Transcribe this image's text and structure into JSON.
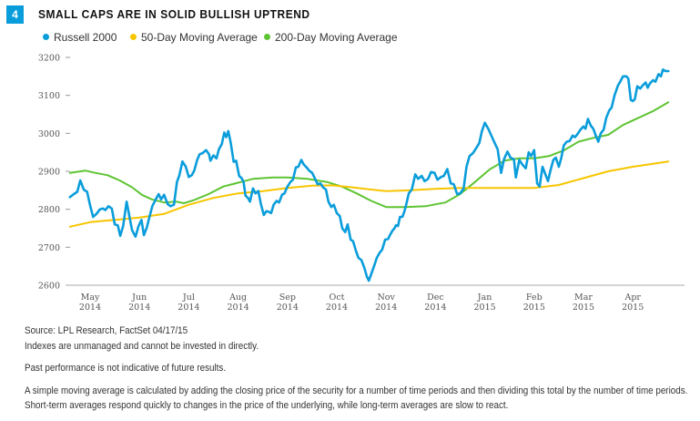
{
  "badge": "4",
  "title": "SMALL CAPS ARE IN SOLID BULLISH UPTREND",
  "legend": [
    {
      "label": "Russell 2000",
      "color": "#0a9ddb"
    },
    {
      "label": "50-Day Moving Average",
      "color": "#f7c500"
    },
    {
      "label": "200-Day Moving Average",
      "color": "#5ec433"
    }
  ],
  "footnotes": {
    "source": "Source: LPL Research, FactSet  04/17/15",
    "indexes": "Indexes are unmanaged and cannot be invested in directly.",
    "past": "Past performance is not indicative of future results.",
    "sma": "A simple moving average is calculated by adding the closing price of the security for a number of time periods and then dividing this total by the number of time periods. Short-term averages respond quickly to changes in the price of the underlying, while long-term averages are slow to react."
  },
  "chart_data": {
    "type": "line",
    "title": "SMALL CAPS ARE IN SOLID BULLISH UPTREND",
    "xlabel": "",
    "ylabel": "",
    "x_unit": "months since May 2014 (0 = May 2014, 11 = Apr 2015)",
    "xlim": [
      -0.5,
      12.1
    ],
    "ylim": [
      2600,
      3200
    ],
    "yticks": [
      2600,
      2700,
      2800,
      2900,
      3000,
      3100,
      3200
    ],
    "xticks": [
      {
        "x": 0,
        "label": [
          "May",
          "2014"
        ]
      },
      {
        "x": 1,
        "label": [
          "Jun",
          "2014"
        ]
      },
      {
        "x": 2,
        "label": [
          "Jul",
          "2014"
        ]
      },
      {
        "x": 3,
        "label": [
          "Aug",
          "2014"
        ]
      },
      {
        "x": 4,
        "label": [
          "Sep",
          "2014"
        ]
      },
      {
        "x": 5,
        "label": [
          "Oct",
          "2014"
        ]
      },
      {
        "x": 6,
        "label": [
          "Nov",
          "2014"
        ]
      },
      {
        "x": 7,
        "label": [
          "Dec",
          "2014"
        ]
      },
      {
        "x": 8,
        "label": [
          "Jan",
          "2015"
        ]
      },
      {
        "x": 9,
        "label": [
          "Feb",
          "2015"
        ]
      },
      {
        "x": 10,
        "label": [
          "Mar",
          "2015"
        ]
      },
      {
        "x": 11,
        "label": [
          "Apr",
          "2015"
        ]
      }
    ],
    "grid": false,
    "legend_position": "top-left",
    "series": [
      {
        "name": "Russell 2000",
        "color": "#0a9ddb",
        "points": [
          [
            -0.41,
            2832
          ],
          [
            -0.33,
            2840
          ],
          [
            -0.26,
            2846
          ],
          [
            -0.2,
            2876
          ],
          [
            -0.13,
            2852
          ],
          [
            -0.06,
            2846
          ],
          [
            0.0,
            2810
          ],
          [
            0.06,
            2780
          ],
          [
            0.13,
            2788
          ],
          [
            0.2,
            2800
          ],
          [
            0.26,
            2802
          ],
          [
            0.31,
            2798
          ],
          [
            0.37,
            2808
          ],
          [
            0.44,
            2802
          ],
          [
            0.5,
            2760
          ],
          [
            0.56,
            2758
          ],
          [
            0.61,
            2730
          ],
          [
            0.67,
            2756
          ],
          [
            0.74,
            2820
          ],
          [
            0.8,
            2778
          ],
          [
            0.85,
            2745
          ],
          [
            0.92,
            2728
          ],
          [
            0.98,
            2755
          ],
          [
            1.04,
            2772
          ],
          [
            1.09,
            2732
          ],
          [
            1.15,
            2752
          ],
          [
            1.2,
            2778
          ],
          [
            1.26,
            2808
          ],
          [
            1.33,
            2826
          ],
          [
            1.39,
            2840
          ],
          [
            1.44,
            2826
          ],
          [
            1.5,
            2838
          ],
          [
            1.57,
            2814
          ],
          [
            1.63,
            2808
          ],
          [
            1.7,
            2812
          ],
          [
            1.76,
            2872
          ],
          [
            1.81,
            2890
          ],
          [
            1.87,
            2926
          ],
          [
            1.94,
            2912
          ],
          [
            2.0,
            2885
          ],
          [
            2.06,
            2890
          ],
          [
            2.11,
            2902
          ],
          [
            2.17,
            2930
          ],
          [
            2.22,
            2945
          ],
          [
            2.28,
            2948
          ],
          [
            2.35,
            2956
          ],
          [
            2.41,
            2945
          ],
          [
            2.44,
            2928
          ],
          [
            2.5,
            2942
          ],
          [
            2.56,
            2934
          ],
          [
            2.61,
            2958
          ],
          [
            2.67,
            2972
          ],
          [
            2.72,
            3002
          ],
          [
            2.76,
            2990
          ],
          [
            2.8,
            3006
          ],
          [
            2.85,
            2975
          ],
          [
            2.91,
            2925
          ],
          [
            2.96,
            2928
          ],
          [
            3.02,
            2888
          ],
          [
            3.07,
            2882
          ],
          [
            3.11,
            2872
          ],
          [
            3.15,
            2836
          ],
          [
            3.2,
            2830
          ],
          [
            3.24,
            2820
          ],
          [
            3.3,
            2855
          ],
          [
            3.35,
            2842
          ],
          [
            3.41,
            2848
          ],
          [
            3.46,
            2815
          ],
          [
            3.52,
            2785
          ],
          [
            3.57,
            2795
          ],
          [
            3.61,
            2794
          ],
          [
            3.67,
            2790
          ],
          [
            3.72,
            2812
          ],
          [
            3.78,
            2822
          ],
          [
            3.83,
            2818
          ],
          [
            3.89,
            2838
          ],
          [
            3.94,
            2842
          ],
          [
            4.0,
            2860
          ],
          [
            4.06,
            2872
          ],
          [
            4.11,
            2878
          ],
          [
            4.17,
            2910
          ],
          [
            4.22,
            2912
          ],
          [
            4.28,
            2930
          ],
          [
            4.33,
            2918
          ],
          [
            4.39,
            2910
          ],
          [
            4.44,
            2902
          ],
          [
            4.5,
            2896
          ],
          [
            4.56,
            2880
          ],
          [
            4.61,
            2866
          ],
          [
            4.67,
            2868
          ],
          [
            4.72,
            2858
          ],
          [
            4.78,
            2852
          ],
          [
            4.83,
            2820
          ],
          [
            4.89,
            2806
          ],
          [
            4.94,
            2812
          ],
          [
            5.0,
            2790
          ],
          [
            5.06,
            2782
          ],
          [
            5.11,
            2750
          ],
          [
            5.17,
            2740
          ],
          [
            5.22,
            2760
          ],
          [
            5.28,
            2720
          ],
          [
            5.33,
            2716
          ],
          [
            5.39,
            2690
          ],
          [
            5.44,
            2672
          ],
          [
            5.5,
            2666
          ],
          [
            5.56,
            2645
          ],
          [
            5.61,
            2622
          ],
          [
            5.65,
            2612
          ],
          [
            5.7,
            2630
          ],
          [
            5.76,
            2652
          ],
          [
            5.81,
            2672
          ],
          [
            5.87,
            2686
          ],
          [
            5.92,
            2694
          ],
          [
            5.98,
            2720
          ],
          [
            6.04,
            2722
          ],
          [
            6.07,
            2730
          ],
          [
            6.13,
            2744
          ],
          [
            6.17,
            2750
          ],
          [
            6.2,
            2758
          ],
          [
            6.24,
            2756
          ],
          [
            6.28,
            2780
          ],
          [
            6.33,
            2780
          ],
          [
            6.37,
            2795
          ],
          [
            6.41,
            2814
          ],
          [
            6.46,
            2842
          ],
          [
            6.52,
            2852
          ],
          [
            6.59,
            2892
          ],
          [
            6.65,
            2880
          ],
          [
            6.72,
            2888
          ],
          [
            6.78,
            2874
          ],
          [
            6.85,
            2880
          ],
          [
            6.91,
            2898
          ],
          [
            6.98,
            2896
          ],
          [
            7.04,
            2878
          ],
          [
            7.11,
            2885
          ],
          [
            7.17,
            2888
          ],
          [
            7.24,
            2906
          ],
          [
            7.31,
            2868
          ],
          [
            7.37,
            2866
          ],
          [
            7.44,
            2840
          ],
          [
            7.5,
            2842
          ],
          [
            7.57,
            2855
          ],
          [
            7.63,
            2912
          ],
          [
            7.69,
            2940
          ],
          [
            7.76,
            2948
          ],
          [
            7.83,
            2962
          ],
          [
            7.89,
            2975
          ],
          [
            7.94,
            3005
          ],
          [
            8.0,
            3028
          ],
          [
            8.07,
            3012
          ],
          [
            8.13,
            2995
          ],
          [
            8.2,
            2975
          ],
          [
            8.26,
            2958
          ],
          [
            8.33,
            2896
          ],
          [
            8.39,
            2932
          ],
          [
            8.46,
            2952
          ],
          [
            8.52,
            2936
          ],
          [
            8.59,
            2932
          ],
          [
            8.63,
            2884
          ],
          [
            8.7,
            2930
          ],
          [
            8.76,
            2918
          ],
          [
            8.83,
            2908
          ],
          [
            8.89,
            2950
          ],
          [
            8.94,
            2940
          ],
          [
            9.0,
            2956
          ],
          [
            9.06,
            2868
          ],
          [
            9.11,
            2860
          ],
          [
            9.17,
            2912
          ],
          [
            9.24,
            2888
          ],
          [
            9.28,
            2874
          ],
          [
            9.33,
            2902
          ],
          [
            9.39,
            2930
          ],
          [
            9.44,
            2936
          ],
          [
            9.5,
            2912
          ],
          [
            9.55,
            2935
          ],
          [
            9.6,
            2968
          ],
          [
            9.66,
            2978
          ],
          [
            9.72,
            2980
          ],
          [
            9.78,
            2994
          ],
          [
            9.83,
            2990
          ],
          [
            9.89,
            3000
          ],
          [
            9.94,
            3010
          ],
          [
            10.0,
            3018
          ],
          [
            10.04,
            3012
          ],
          [
            10.09,
            3038
          ],
          [
            10.15,
            3020
          ],
          [
            10.2,
            3012
          ],
          [
            10.26,
            2990
          ],
          [
            10.3,
            2978
          ],
          [
            10.35,
            3000
          ],
          [
            10.41,
            3010
          ],
          [
            10.46,
            3040
          ],
          [
            10.52,
            3060
          ],
          [
            10.57,
            3068
          ],
          [
            10.63,
            3100
          ],
          [
            10.7,
            3126
          ],
          [
            10.74,
            3135
          ],
          [
            10.8,
            3150
          ],
          [
            10.87,
            3150
          ],
          [
            10.91,
            3144
          ],
          [
            10.96,
            3088
          ],
          [
            11.0,
            3085
          ],
          [
            11.04,
            3090
          ],
          [
            11.09,
            3124
          ],
          [
            11.15,
            3118
          ],
          [
            11.2,
            3126
          ],
          [
            11.26,
            3134
          ],
          [
            11.3,
            3120
          ],
          [
            11.35,
            3132
          ],
          [
            11.41,
            3140
          ],
          [
            11.46,
            3136
          ],
          [
            11.52,
            3156
          ],
          [
            11.57,
            3150
          ],
          [
            11.61,
            3168
          ],
          [
            11.66,
            3164
          ],
          [
            11.72,
            3164
          ]
        ]
      },
      {
        "name": "50-Day Moving Average",
        "color": "#f7c500",
        "points": [
          [
            -0.41,
            2754
          ],
          [
            0.0,
            2766
          ],
          [
            0.5,
            2772
          ],
          [
            1.0,
            2778
          ],
          [
            1.5,
            2788
          ],
          [
            2.0,
            2812
          ],
          [
            2.5,
            2830
          ],
          [
            3.0,
            2842
          ],
          [
            3.5,
            2848
          ],
          [
            4.0,
            2856
          ],
          [
            4.5,
            2862
          ],
          [
            4.9,
            2863
          ],
          [
            5.3,
            2858
          ],
          [
            5.7,
            2852
          ],
          [
            6.0,
            2848
          ],
          [
            6.5,
            2850
          ],
          [
            7.0,
            2854
          ],
          [
            7.5,
            2856
          ],
          [
            8.0,
            2856
          ],
          [
            8.5,
            2856
          ],
          [
            9.0,
            2856
          ],
          [
            9.5,
            2864
          ],
          [
            10.0,
            2882
          ],
          [
            10.5,
            2900
          ],
          [
            11.0,
            2912
          ],
          [
            11.72,
            2926
          ]
        ]
      },
      {
        "name": "200-Day Moving Average",
        "color": "#5ec433",
        "points": [
          [
            -0.41,
            2896
          ],
          [
            -0.1,
            2902
          ],
          [
            0.1,
            2896
          ],
          [
            0.35,
            2890
          ],
          [
            0.6,
            2876
          ],
          [
            0.85,
            2858
          ],
          [
            1.05,
            2838
          ],
          [
            1.25,
            2826
          ],
          [
            1.5,
            2818
          ],
          [
            1.75,
            2820
          ],
          [
            1.9,
            2816
          ],
          [
            2.1,
            2824
          ],
          [
            2.4,
            2840
          ],
          [
            2.7,
            2860
          ],
          [
            3.0,
            2870
          ],
          [
            3.3,
            2880
          ],
          [
            3.7,
            2884
          ],
          [
            4.0,
            2884
          ],
          [
            4.4,
            2880
          ],
          [
            4.8,
            2872
          ],
          [
            5.1,
            2860
          ],
          [
            5.4,
            2842
          ],
          [
            5.7,
            2822
          ],
          [
            6.0,
            2806
          ],
          [
            6.4,
            2806
          ],
          [
            6.8,
            2808
          ],
          [
            7.2,
            2818
          ],
          [
            7.5,
            2840
          ],
          [
            7.8,
            2872
          ],
          [
            8.1,
            2905
          ],
          [
            8.4,
            2928
          ],
          [
            8.7,
            2934
          ],
          [
            9.0,
            2934
          ],
          [
            9.3,
            2940
          ],
          [
            9.6,
            2955
          ],
          [
            9.9,
            2978
          ],
          [
            10.2,
            2988
          ],
          [
            10.5,
            2996
          ],
          [
            10.8,
            3022
          ],
          [
            11.1,
            3040
          ],
          [
            11.4,
            3058
          ],
          [
            11.72,
            3082
          ]
        ]
      }
    ]
  }
}
